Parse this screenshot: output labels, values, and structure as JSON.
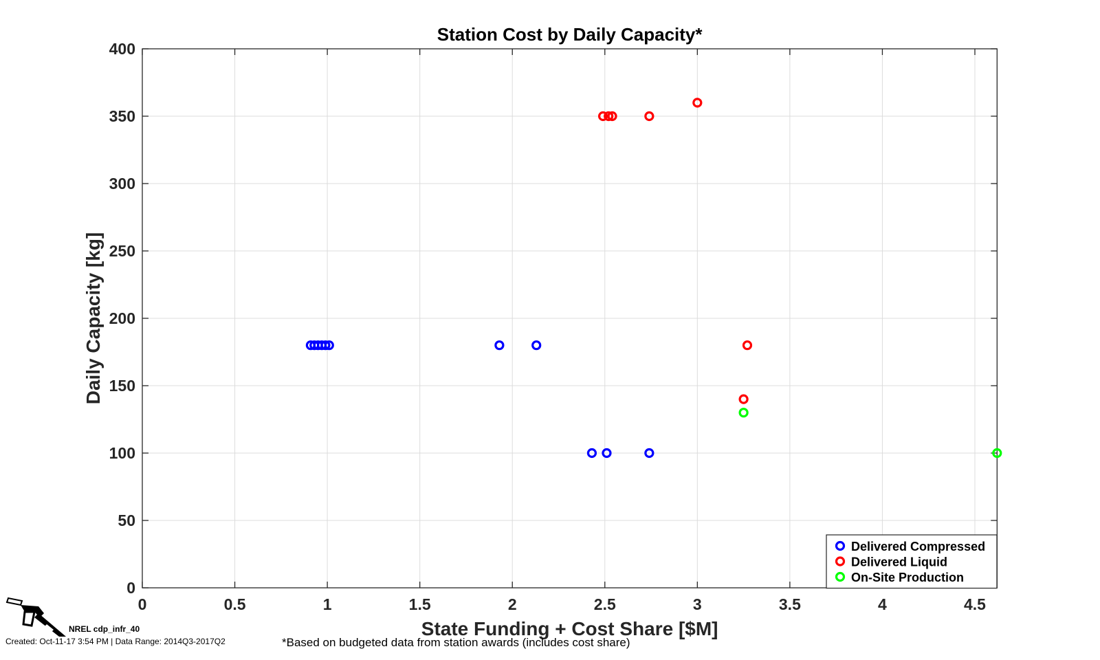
{
  "chart_data": {
    "type": "scatter",
    "title": "Station Cost by Daily Capacity*",
    "xlabel": "State Funding + Cost Share [$M]",
    "ylabel": "Daily Capacity [kg]",
    "xlim": [
      0,
      4.62
    ],
    "ylim": [
      0,
      400
    ],
    "xticks": [
      0,
      0.5,
      1,
      1.5,
      2,
      2.5,
      3,
      3.5,
      4,
      4.5
    ],
    "xtick_labels": [
      "0",
      "0.5",
      "1",
      "1.5",
      "2",
      "2.5",
      "3",
      "3.5",
      "4",
      "4.5"
    ],
    "yticks": [
      0,
      50,
      100,
      150,
      200,
      250,
      300,
      350,
      400
    ],
    "ytick_labels": [
      "0",
      "50",
      "100",
      "150",
      "200",
      "250",
      "300",
      "350",
      "400"
    ],
    "grid": true,
    "legend_position": "bottom-right",
    "series": [
      {
        "name": "Delivered Compressed",
        "color": "#0000ff",
        "points": [
          {
            "x": 0.91,
            "y": 180
          },
          {
            "x": 0.93,
            "y": 180
          },
          {
            "x": 0.95,
            "y": 180
          },
          {
            "x": 0.97,
            "y": 180
          },
          {
            "x": 0.99,
            "y": 180
          },
          {
            "x": 1.01,
            "y": 180
          },
          {
            "x": 1.93,
            "y": 180
          },
          {
            "x": 2.13,
            "y": 180
          },
          {
            "x": 2.43,
            "y": 100
          },
          {
            "x": 2.51,
            "y": 100
          },
          {
            "x": 2.74,
            "y": 100
          }
        ]
      },
      {
        "name": "Delivered Liquid",
        "color": "#ff0000",
        "points": [
          {
            "x": 2.49,
            "y": 350
          },
          {
            "x": 2.52,
            "y": 350
          },
          {
            "x": 2.54,
            "y": 350
          },
          {
            "x": 2.74,
            "y": 350
          },
          {
            "x": 3.0,
            "y": 360
          },
          {
            "x": 3.27,
            "y": 180
          },
          {
            "x": 3.25,
            "y": 140
          }
        ]
      },
      {
        "name": "On-Site Production",
        "color": "#00ff00",
        "points": [
          {
            "x": 3.25,
            "y": 130
          },
          {
            "x": 4.62,
            "y": 100
          }
        ]
      }
    ]
  },
  "footer": {
    "icon": "fuel-nozzle-icon",
    "id_label": "NREL cdp_infr_40",
    "created": "Created: Oct-11-17  3:54 PM | Data Range: 2014Q3-2017Q2",
    "footnote": "*Based on budgeted data from station awards (includes cost share)"
  }
}
